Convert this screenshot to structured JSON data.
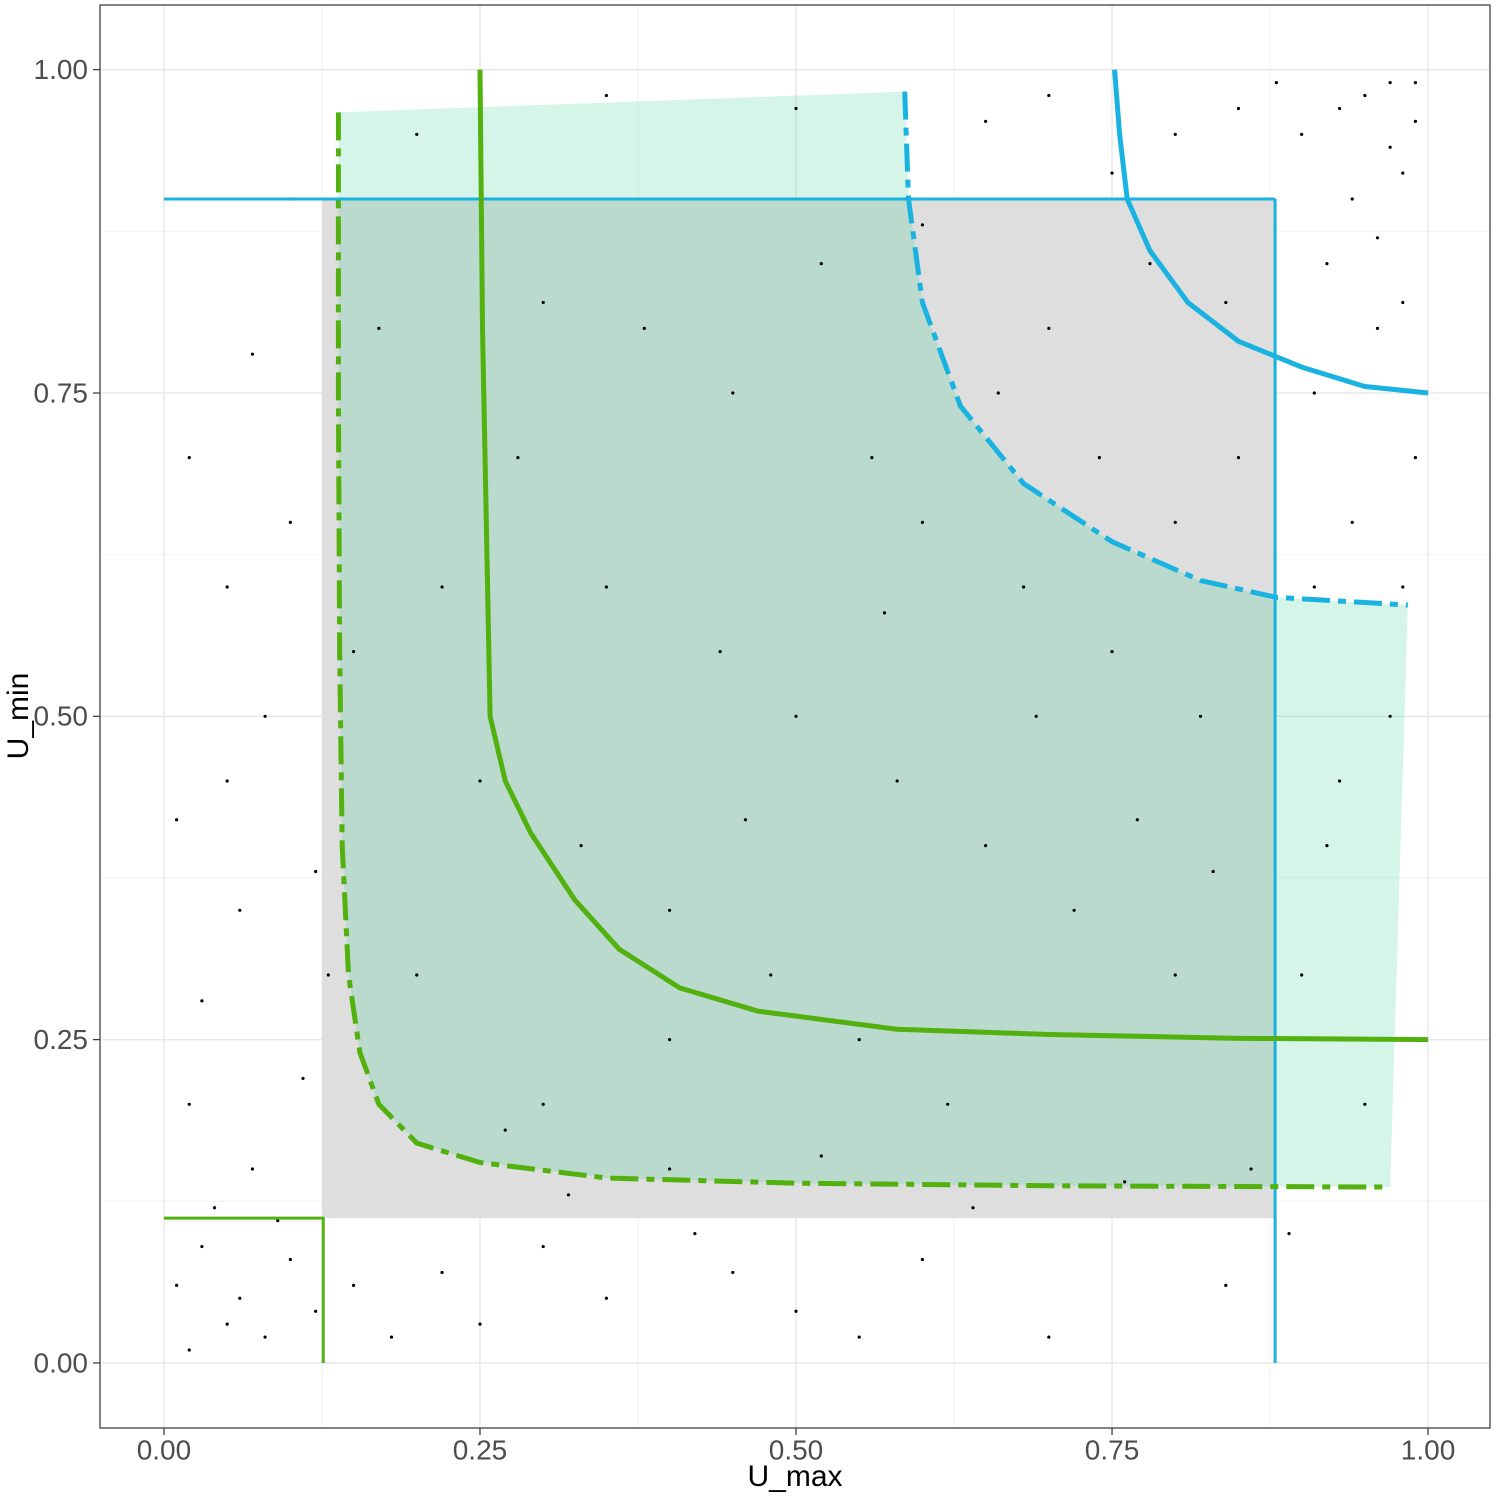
{
  "chart_data": {
    "type": "scatter",
    "x_label": "U_max",
    "y_label": "U_min",
    "xlim": [
      -0.0506,
      1.049
    ],
    "ylim": [
      -0.0503,
      1.05
    ],
    "xticks": [
      {
        "value": 0,
        "label": "0.00"
      },
      {
        "value": 0.25,
        "label": "0.25"
      },
      {
        "value": 0.5,
        "label": "0.50"
      },
      {
        "value": 0.75,
        "label": "0.75"
      },
      {
        "value": 1,
        "label": "1.00"
      }
    ],
    "yticks": [
      {
        "value": 0,
        "label": "0.00"
      },
      {
        "value": 0.25,
        "label": "0.25"
      },
      {
        "value": 0.5,
        "label": "0.50"
      },
      {
        "value": 0.75,
        "label": "0.75"
      },
      {
        "value": 1,
        "label": "1.00"
      }
    ],
    "grid": true,
    "minor_grid": true,
    "points": {
      "color": "#000000",
      "x": [
        0.02,
        0.05,
        0.01,
        0.08,
        0.03,
        0.06,
        0.1,
        0.04,
        0.12,
        0.07,
        0.02,
        0.09,
        0.15,
        0.18,
        0.22,
        0.03,
        0.06,
        0.11,
        0.01,
        0.08,
        0.05,
        0.13,
        0.02,
        0.1,
        0.07,
        0.1,
        0.25,
        0.3,
        0.35,
        0.42,
        0.5,
        0.6,
        0.7,
        0.45,
        0.2,
        0.25,
        0.3,
        0.35,
        0.4,
        0.45,
        0.5,
        0.55,
        0.6,
        0.65,
        0.7,
        0.75,
        0.8,
        0.85,
        0.3,
        0.4,
        0.22,
        0.33,
        0.48,
        0.52,
        0.58,
        0.62,
        0.68,
        0.72,
        0.78,
        0.82,
        0.86,
        0.28,
        0.38,
        0.44,
        0.56,
        0.66,
        0.74,
        0.8,
        0.84,
        0.6,
        0.9,
        0.95,
        0.98,
        0.92,
        0.97,
        0.99,
        0.88,
        0.94,
        0.96,
        0.99,
        0.91,
        0.93,
        0.97,
        0.9,
        0.95,
        0.89,
        0.98,
        0.85,
        0.8,
        0.75,
        0.7,
        0.65,
        0.99,
        0.97,
        0.93,
        0.96,
        0.91,
        0.98,
        0.94,
        0.92,
        0.2,
        0.35,
        0.5,
        0.15,
        0.17,
        0.05,
        0.12,
        0.27,
        0.32,
        0.52,
        0.64,
        0.76,
        0.84,
        0.55,
        0.4,
        0.46,
        0.57,
        0.69,
        0.77,
        0.83
      ],
      "values": [
        0.01,
        0.03,
        0.06,
        0.02,
        0.09,
        0.05,
        0.08,
        0.12,
        0.04,
        0.15,
        0.2,
        0.11,
        0.06,
        0.02,
        0.07,
        0.28,
        0.35,
        0.22,
        0.42,
        0.5,
        0.6,
        0.3,
        0.7,
        0.65,
        0.78,
        0.9,
        0.03,
        0.09,
        0.05,
        0.1,
        0.04,
        0.08,
        0.02,
        0.07,
        0.3,
        0.45,
        0.2,
        0.6,
        0.35,
        0.75,
        0.5,
        0.25,
        0.65,
        0.4,
        0.8,
        0.55,
        0.3,
        0.7,
        0.82,
        0.15,
        0.6,
        0.4,
        0.3,
        0.85,
        0.45,
        0.2,
        0.6,
        0.35,
        0.85,
        0.5,
        0.15,
        0.7,
        0.8,
        0.55,
        0.7,
        0.75,
        0.7,
        0.65,
        0.82,
        0.88,
        0.95,
        0.98,
        0.92,
        0.85,
        0.99,
        0.96,
        0.99,
        0.9,
        0.8,
        0.7,
        0.6,
        0.45,
        0.5,
        0.3,
        0.2,
        0.1,
        0.6,
        0.97,
        0.95,
        0.92,
        0.98,
        0.96,
        0.99,
        0.94,
        0.97,
        0.87,
        0.75,
        0.82,
        0.65,
        0.4,
        0.95,
        0.98,
        0.97,
        0.55,
        0.8,
        0.45,
        0.38,
        0.18,
        0.13,
        0.16,
        0.12,
        0.14,
        0.06,
        0.02,
        0.25,
        0.42,
        0.58,
        0.5,
        0.42,
        0.38
      ]
    },
    "areas": [
      {
        "color": "#dedede",
        "opacity": 1,
        "x": [
          0.125,
          0.879,
          0.879,
          0.125
        ],
        "values": [
          0.112,
          0.112,
          0.9,
          0.9
        ]
      },
      {
        "color": "#2ecc8f",
        "opacity": 0.2,
        "x": [
          0.138,
          0.586,
          0.589,
          0.6,
          0.63,
          0.68,
          0.75,
          0.82,
          0.88,
          0.984,
          0.97,
          0.7,
          0.5,
          0.35,
          0.25,
          0.2,
          0.17,
          0.155,
          0.146,
          0.141,
          0.139,
          0.138
        ],
        "values": [
          0.967,
          0.983,
          0.9,
          0.82,
          0.74,
          0.68,
          0.635,
          0.605,
          0.592,
          0.586,
          0.136,
          0.137,
          0.139,
          0.143,
          0.155,
          0.17,
          0.2,
          0.24,
          0.3,
          0.4,
          0.55,
          0.75
        ]
      }
    ],
    "lines": [
      {
        "color": "#1ab2e0",
        "style": "solid",
        "weight": "thin",
        "x": [
          0,
          0.879
        ],
        "values": [
          0.9,
          0.9
        ]
      },
      {
        "color": "#1ab2e0",
        "style": "solid",
        "weight": "thin",
        "x": [
          0.879,
          0.879
        ],
        "values": [
          0,
          0.9
        ]
      },
      {
        "color": "#52b00f",
        "style": "solid",
        "weight": "thin",
        "x": [
          0,
          0.126,
          0.126
        ],
        "values": [
          0.112,
          0.112,
          0
        ]
      },
      {
        "color": "#52b00f",
        "style": "solid",
        "weight": "thick",
        "x": [
          0.25,
          0.252,
          0.255,
          0.258,
          0.27,
          0.29,
          0.325,
          0.36,
          0.408,
          0.47,
          0.58,
          0.7,
          0.85,
          1.0
        ],
        "values": [
          1.0,
          0.8,
          0.65,
          0.5,
          0.45,
          0.41,
          0.358,
          0.32,
          0.29,
          0.272,
          0.258,
          0.254,
          0.251,
          0.25
        ]
      },
      {
        "color": "#52b00f",
        "style": "dashdot",
        "weight": "thick",
        "x": [
          0.138,
          0.138,
          0.139,
          0.141,
          0.146,
          0.155,
          0.17,
          0.2,
          0.25,
          0.35,
          0.5,
          0.7,
          0.966
        ],
        "values": [
          0.967,
          0.75,
          0.55,
          0.4,
          0.3,
          0.24,
          0.2,
          0.17,
          0.155,
          0.143,
          0.139,
          0.137,
          0.136
        ]
      },
      {
        "color": "#1ab2e0",
        "style": "solid",
        "weight": "thick",
        "x": [
          0.752,
          0.756,
          0.762,
          0.78,
          0.81,
          0.85,
          0.9,
          0.95,
          1.0
        ],
        "values": [
          1.0,
          0.95,
          0.9,
          0.86,
          0.82,
          0.79,
          0.77,
          0.755,
          0.75
        ]
      },
      {
        "color": "#1ab2e0",
        "style": "dashdot",
        "weight": "thick",
        "x": [
          0.586,
          0.589,
          0.6,
          0.63,
          0.68,
          0.75,
          0.82,
          0.88,
          0.984
        ],
        "values": [
          0.983,
          0.9,
          0.82,
          0.74,
          0.68,
          0.635,
          0.605,
          0.592,
          0.586
        ]
      }
    ]
  }
}
